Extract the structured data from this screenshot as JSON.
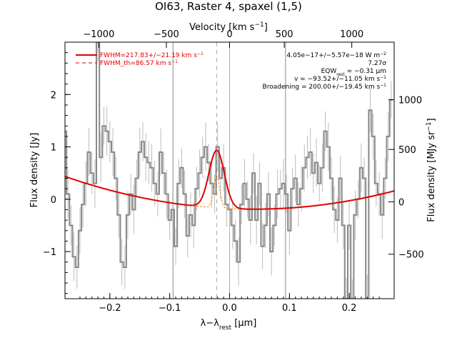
{
  "chart_data": {
    "type": "line",
    "title": "OI63, Raster 4, spaxel (1,5)",
    "xlabel_main": "λ−λ",
    "xlabel_sub": "rest",
    "xlabel_unit": " [μm]",
    "ylabel": "Flux density [Jy]",
    "top_label_main": "Velocity [km s",
    "top_label_sup": "−1",
    "top_label_end": "]",
    "right_label_main": "Flux density [MJy sr",
    "right_label_sup": "−1",
    "right_label_end": "]",
    "xlim": [
      -0.275,
      0.275
    ],
    "ylim": [
      -1.9,
      3.0
    ],
    "x_ticks": [
      -0.2,
      -0.1,
      0.0,
      0.1,
      0.2
    ],
    "x_tick_labels": [
      "−0.2",
      "−0.1",
      "0.0",
      "0.1",
      "0.2"
    ],
    "y_ticks": [
      -1,
      0,
      1,
      2
    ],
    "y_tick_labels": [
      "−1",
      "0",
      "1",
      "2"
    ],
    "top_ticks_x": [
      -0.2185,
      -0.1056,
      0.0,
      0.0914,
      0.2042
    ],
    "top_tick_labels": [
      "−1000",
      "−500",
      "0",
      "500",
      "1000"
    ],
    "right_ticks_y": [
      -1.0,
      0.0,
      1.0,
      2.0
    ],
    "right_tick_labels": [
      "−500",
      "0",
      "500",
      "1000"
    ],
    "vlines_solid": [
      -0.0945,
      0.0935
    ],
    "vline_dashed": -0.0215,
    "vline_center": 0.0,
    "legend": [
      {
        "label": "FWHM=217.83+/−21.19 km s",
        "sup": "−1",
        "style": "solid",
        "color": "#e00000"
      },
      {
        "label": "FWHM_th=86.57 km s",
        "sup": "−1",
        "style": "dashed",
        "color": "#e00000"
      }
    ],
    "annotations": [
      {
        "text": "4.05e−17+/−5.57e−18 W m",
        "sup": "−2"
      },
      {
        "text": "7.27σ"
      },
      {
        "text": "EQW",
        "sub": "rest",
        "text2": " = −0.31 μm"
      },
      {
        "text": "v = −93.52+/−11.05 km s",
        "sup": "−1"
      },
      {
        "text": "Broadening = 200.00+/−19.45 km s",
        "sup": "−1"
      }
    ],
    "series": [
      {
        "name": "spectrum",
        "color": "#888888",
        "x": [
          -0.275,
          -0.27,
          -0.265,
          -0.26,
          -0.255,
          -0.25,
          -0.245,
          -0.24,
          -0.235,
          -0.23,
          -0.225,
          -0.22,
          -0.215,
          -0.21,
          -0.205,
          -0.2,
          -0.195,
          -0.19,
          -0.185,
          -0.18,
          -0.175,
          -0.17,
          -0.165,
          -0.16,
          -0.155,
          -0.15,
          -0.145,
          -0.14,
          -0.135,
          -0.13,
          -0.125,
          -0.12,
          -0.115,
          -0.11,
          -0.105,
          -0.1,
          -0.095,
          -0.09,
          -0.085,
          -0.08,
          -0.075,
          -0.07,
          -0.065,
          -0.06,
          -0.055,
          -0.05,
          -0.045,
          -0.04,
          -0.035,
          -0.03,
          -0.025,
          -0.02,
          -0.015,
          -0.01,
          -0.005,
          0.0,
          0.005,
          0.01,
          0.015,
          0.02,
          0.025,
          0.03,
          0.035,
          0.04,
          0.045,
          0.05,
          0.055,
          0.06,
          0.065,
          0.07,
          0.075,
          0.08,
          0.085,
          0.09,
          0.095,
          0.1,
          0.105,
          0.11,
          0.115,
          0.12,
          0.125,
          0.13,
          0.135,
          0.14,
          0.145,
          0.15,
          0.155,
          0.16,
          0.165,
          0.17,
          0.175,
          0.18,
          0.185,
          0.19,
          0.195,
          0.2,
          0.205,
          0.21,
          0.215,
          0.22,
          0.225,
          0.23,
          0.235,
          0.24,
          0.245,
          0.25,
          0.255,
          0.26,
          0.265,
          0.27
        ],
        "y": [
          1.3,
          0.1,
          -0.5,
          -1.1,
          -1.3,
          -0.6,
          -0.1,
          0.3,
          0.9,
          0.5,
          0.3,
          3.0,
          0.8,
          1.4,
          1.3,
          1.1,
          0.9,
          0.4,
          -0.3,
          -1.2,
          -1.3,
          -0.3,
          0.1,
          -0.2,
          0.4,
          0.9,
          1.1,
          0.8,
          0.7,
          0.6,
          0.3,
          0.1,
          0.9,
          0.5,
          0.1,
          -0.4,
          -0.2,
          -0.9,
          0.3,
          0.6,
          0.1,
          -0.7,
          -0.3,
          -0.5,
          0.2,
          0.5,
          0.8,
          1.0,
          0.7,
          0.3,
          0.1,
          1.0,
          0.4,
          0.6,
          -0.1,
          -0.2,
          -0.5,
          -0.8,
          -1.2,
          -0.1,
          0.3,
          0.0,
          -0.4,
          0.5,
          -0.4,
          0.3,
          -0.9,
          -0.5,
          0.1,
          -1.0,
          -0.5,
          0.1,
          0.2,
          0.3,
          0.1,
          -0.6,
          0.2,
          0.4,
          -0.1,
          0.2,
          0.6,
          0.8,
          0.9,
          0.5,
          0.7,
          0.3,
          0.6,
          1.3,
          1.0,
          0.4,
          -0.2,
          -0.4,
          0.4,
          -0.5,
          -1.9,
          -0.5,
          -1.9,
          -0.3,
          0.0,
          0.6,
          0.4,
          -1.9,
          1.7,
          1.2,
          0.3,
          0.1,
          -0.3,
          0.4,
          1.2,
          1.9
        ]
      },
      {
        "name": "fit",
        "color": "#e00000",
        "baseline": {
          "a": 0.1,
          "b": 0.095,
          "c": -0.18,
          "d": 0.04
        },
        "gaussian": {
          "center": -0.0215,
          "amplitude": 1.1,
          "sigma": 0.0128
        }
      },
      {
        "name": "thermal",
        "color": "#ff8000",
        "gaussian": {
          "center": -0.0215,
          "amplitude": 0.6,
          "sigma": 0.0051
        }
      }
    ],
    "colors": {
      "spectrum": "#888888",
      "fit": "#e00000",
      "thermal": "#ff8000",
      "grid": "#888888",
      "errorbar": "#bbbbbb"
    }
  }
}
